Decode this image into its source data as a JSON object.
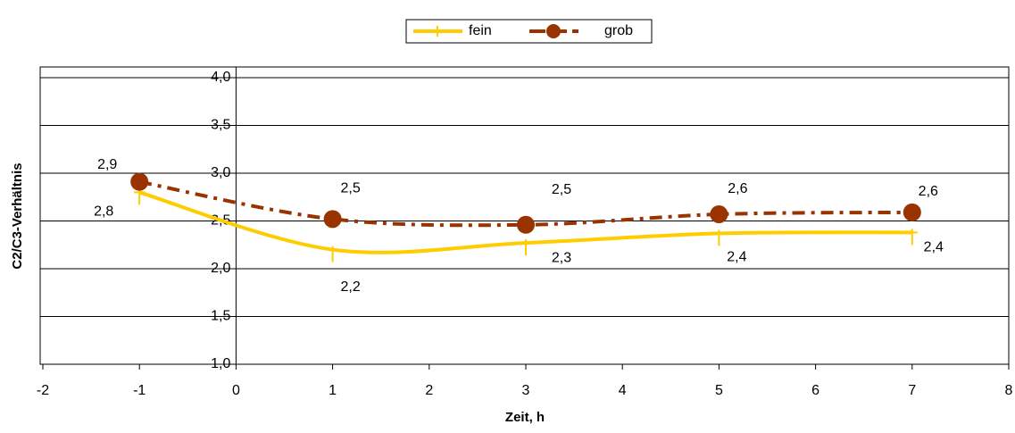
{
  "chart_data": {
    "type": "scatter",
    "x_label": "Zeit, h",
    "y_label": "C2/C3-Verhältnis",
    "xlim": [
      -2,
      8
    ],
    "xticks": [
      -2,
      -1,
      0,
      1,
      2,
      3,
      4,
      5,
      6,
      7,
      8
    ],
    "ylim": [
      1.0,
      4.0
    ],
    "yticks": [
      {
        "value": 1.0,
        "label": "1,0"
      },
      {
        "value": 1.5,
        "label": "1,5"
      },
      {
        "value": 2.0,
        "label": "2,0"
      },
      {
        "value": 2.5,
        "label": "2,5"
      },
      {
        "value": 3.0,
        "label": "3,0"
      },
      {
        "value": 3.5,
        "label": "3,5"
      },
      {
        "value": 4.0,
        "label": "4,0"
      }
    ],
    "grid": true,
    "legend": "top",
    "x": [
      -1,
      1,
      3,
      5,
      7
    ],
    "series": [
      {
        "name": "fein",
        "color": "#FFCC00",
        "values": [
          2.8,
          2.2,
          2.27,
          2.37,
          2.38
        ],
        "value_labels": [
          "2,8",
          "2,2",
          "2,3",
          "2,4",
          "2,4"
        ]
      },
      {
        "name": "grob",
        "color": "#993300",
        "values": [
          2.91,
          2.52,
          2.46,
          2.57,
          2.59
        ],
        "value_labels": [
          "2,9",
          "2,5",
          "2,5",
          "2,6",
          "2,6"
        ]
      }
    ]
  }
}
